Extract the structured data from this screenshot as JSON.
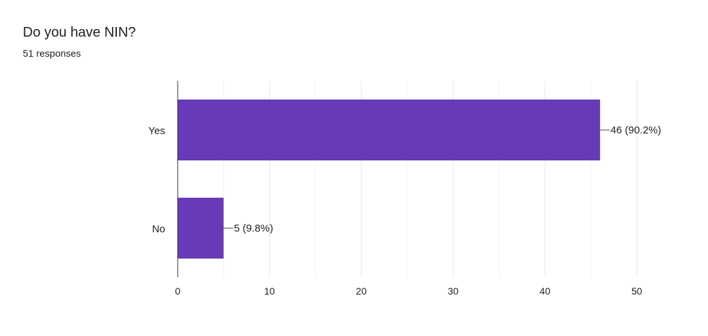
{
  "question": {
    "title": "Do you have NIN?",
    "responses": "51 responses"
  },
  "chart_data": {
    "type": "bar",
    "orientation": "horizontal",
    "categories": [
      "Yes",
      "No"
    ],
    "values": [
      46,
      5
    ],
    "data_labels": [
      "46 (90.2%)",
      "5 (9.8%)"
    ],
    "xlim": [
      0,
      50
    ],
    "xticks": [
      0,
      10,
      20,
      30,
      40,
      50
    ],
    "grid": true,
    "legend": "none",
    "bar_color": "#673ab7",
    "grid_color": "#e6e6e6",
    "axis_color": "#333333"
  }
}
